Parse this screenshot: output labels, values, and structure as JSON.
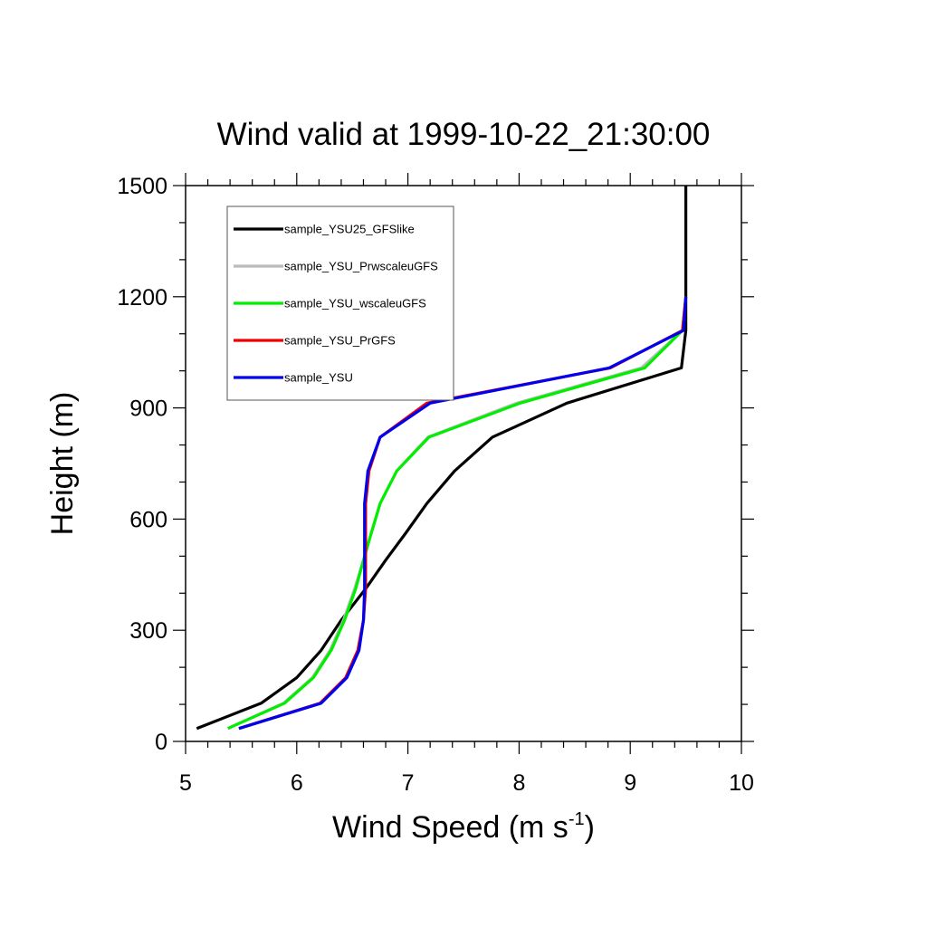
{
  "chart_data": {
    "type": "line",
    "title": "Wind valid at 1999-10-22_21:30:00",
    "xlabel": {
      "base": "Wind Speed (m s",
      "superscript": "-1",
      "suffix": ")"
    },
    "ylabel": "Height (m)",
    "xlim": [
      5,
      10
    ],
    "ylim": [
      0,
      1500
    ],
    "x_ticks": [
      "5",
      "6",
      "7",
      "8",
      "9",
      "10"
    ],
    "y_ticks": [
      "0",
      "300",
      "600",
      "900",
      "1200",
      "1500"
    ],
    "grid": false,
    "legend_position": "top-left",
    "series": [
      {
        "name": "sample_YSU25_GFSlike",
        "color": "#000000",
        "points": [
          [
            5.1,
            35
          ],
          [
            5.68,
            103
          ],
          [
            6.0,
            172
          ],
          [
            6.22,
            246
          ],
          [
            6.4,
            327
          ],
          [
            6.62,
            412
          ],
          [
            6.8,
            489
          ],
          [
            6.98,
            562
          ],
          [
            7.17,
            642
          ],
          [
            7.42,
            730
          ],
          [
            7.76,
            821
          ],
          [
            8.43,
            913
          ],
          [
            9.46,
            1008
          ],
          [
            9.5,
            1109
          ],
          [
            9.5,
            1200
          ],
          [
            9.5,
            1500
          ]
        ]
      },
      {
        "name": "sample_YSU_PrwscaleuGFS",
        "color": "#bbbbbb",
        "points": [
          [
            5.38,
            35
          ],
          [
            5.88,
            103
          ],
          [
            6.14,
            172
          ],
          [
            6.3,
            246
          ],
          [
            6.42,
            327
          ],
          [
            6.52,
            412
          ],
          [
            6.6,
            489
          ],
          [
            6.67,
            562
          ],
          [
            6.75,
            642
          ],
          [
            6.9,
            730
          ],
          [
            7.18,
            821
          ],
          [
            7.98,
            913
          ],
          [
            9.1,
            1008
          ],
          [
            9.47,
            1109
          ],
          [
            9.5,
            1200
          ]
        ]
      },
      {
        "name": "sample_YSU_wscaleuGFS",
        "color": "#00ee00",
        "points": [
          [
            5.38,
            35
          ],
          [
            5.89,
            103
          ],
          [
            6.15,
            172
          ],
          [
            6.31,
            246
          ],
          [
            6.43,
            327
          ],
          [
            6.53,
            412
          ],
          [
            6.6,
            489
          ],
          [
            6.67,
            562
          ],
          [
            6.75,
            642
          ],
          [
            6.9,
            730
          ],
          [
            7.19,
            821
          ],
          [
            8.01,
            913
          ],
          [
            9.13,
            1008
          ],
          [
            9.47,
            1109
          ],
          [
            9.5,
            1200
          ]
        ]
      },
      {
        "name": "sample_YSU_PrGFS",
        "color": "#ee0000",
        "points": [
          [
            5.48,
            35
          ],
          [
            6.21,
            103
          ],
          [
            6.44,
            172
          ],
          [
            6.55,
            246
          ],
          [
            6.6,
            327
          ],
          [
            6.62,
            412
          ],
          [
            6.62,
            489
          ],
          [
            6.62,
            562
          ],
          [
            6.62,
            642
          ],
          [
            6.65,
            730
          ],
          [
            6.75,
            821
          ],
          [
            7.17,
            913
          ],
          [
            8.82,
            1008
          ],
          [
            9.47,
            1109
          ],
          [
            9.5,
            1200
          ]
        ]
      },
      {
        "name": "sample_YSU",
        "color": "#0000ee",
        "points": [
          [
            5.48,
            35
          ],
          [
            6.22,
            103
          ],
          [
            6.45,
            172
          ],
          [
            6.56,
            246
          ],
          [
            6.6,
            327
          ],
          [
            6.61,
            412
          ],
          [
            6.61,
            489
          ],
          [
            6.61,
            562
          ],
          [
            6.61,
            642
          ],
          [
            6.64,
            730
          ],
          [
            6.75,
            821
          ],
          [
            7.2,
            913
          ],
          [
            8.81,
            1008
          ],
          [
            9.48,
            1109
          ],
          [
            9.5,
            1200
          ]
        ]
      }
    ]
  }
}
